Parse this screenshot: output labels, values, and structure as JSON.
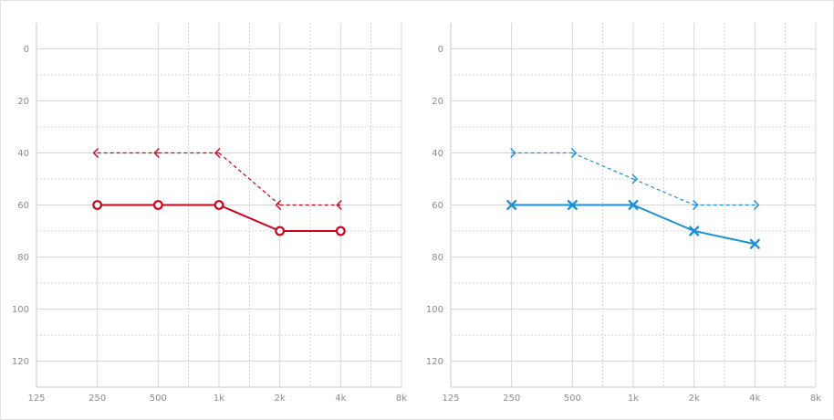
{
  "chart_data": [
    {
      "type": "line",
      "title": "",
      "xlabel": "",
      "ylabel": "",
      "x_ticks": [
        "125",
        "250",
        "500",
        "1k",
        "2k",
        "4k",
        "8k"
      ],
      "y_ticks": [
        "0",
        "20",
        "40",
        "60",
        "80",
        "100",
        "120"
      ],
      "x_scale": "log2-octave",
      "ylim": [
        -10,
        130
      ],
      "y_inverted": true,
      "grid": true,
      "series": [
        {
          "symbol": "circle",
          "line": "solid",
          "color": "#d0021b",
          "x": [
            "250",
            "500",
            "1k",
            "2k",
            "4k"
          ],
          "values": [
            60,
            60,
            60,
            70,
            70
          ]
        },
        {
          "symbol": "bracket-left",
          "line": "dashed",
          "color": "#d0021b",
          "x": [
            "250",
            "500",
            "1k",
            "2k",
            "4k"
          ],
          "values": [
            40,
            40,
            40,
            60,
            60
          ]
        }
      ]
    },
    {
      "type": "line",
      "title": "",
      "xlabel": "",
      "ylabel": "",
      "x_ticks": [
        "125",
        "250",
        "500",
        "1k",
        "2k",
        "4k",
        "8k"
      ],
      "y_ticks": [
        "0",
        "20",
        "40",
        "60",
        "80",
        "100",
        "120"
      ],
      "x_scale": "log2-octave",
      "ylim": [
        -10,
        130
      ],
      "y_inverted": true,
      "grid": true,
      "series": [
        {
          "symbol": "cross",
          "line": "solid",
          "color": "#1a8fd6",
          "x": [
            "250",
            "500",
            "1k",
            "2k",
            "4k"
          ],
          "values": [
            60,
            60,
            60,
            70,
            75
          ]
        },
        {
          "symbol": "bracket-right",
          "line": "dashed",
          "color": "#1a8fd6",
          "x": [
            "250",
            "500",
            "1k",
            "2k",
            "4k"
          ],
          "values": [
            40,
            40,
            50,
            60,
            60
          ]
        }
      ]
    }
  ]
}
